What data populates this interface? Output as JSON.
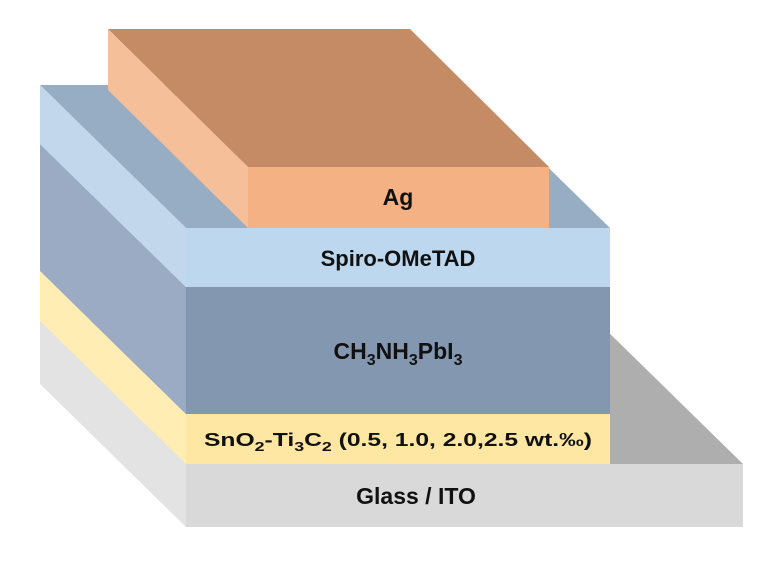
{
  "layers": [
    {
      "id": "glass-ito",
      "label": [
        "Glass / ITO"
      ],
      "colors": {
        "top": "#AEAEAE",
        "side": "#E3E3E3",
        "front": "#D9D9D9"
      }
    },
    {
      "id": "sno2-ti3c2",
      "label": [
        "SnO",
        "2",
        "-Ti",
        "3",
        "C",
        "2",
        " (0.5, 1.0, 2.0,2.5 wt.‰)"
      ],
      "colors": {
        "side": "#FFEDB3",
        "front": "#FDE7A2"
      }
    },
    {
      "id": "perovskite",
      "label": [
        "CH",
        "3",
        "NH",
        "3",
        "PbI",
        "3"
      ],
      "colors": {
        "side": "#9AABC3",
        "front": "#8497B0"
      }
    },
    {
      "id": "spiro-ometad",
      "label": [
        "Spiro-OMeTAD"
      ],
      "colors": {
        "top": "#97ADC3",
        "side": "#C2D7EC",
        "front": "#BDD7EE"
      }
    },
    {
      "id": "ag",
      "label": [
        "Ag"
      ],
      "colors": {
        "top": "#C48B64",
        "side": "#F5BF9A",
        "front": "#F4B183"
      }
    }
  ]
}
